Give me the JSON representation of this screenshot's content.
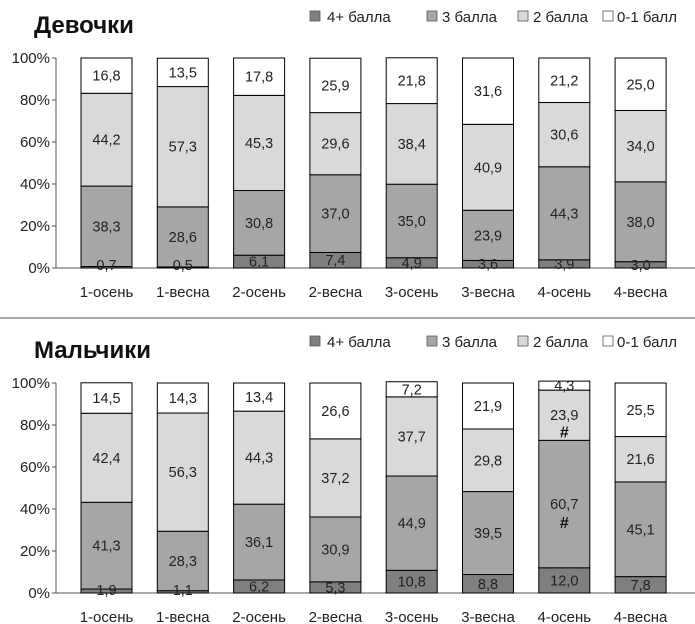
{
  "series_order": [
    "4+ балла",
    "3 балла",
    "2 балла",
    "0-1 балл"
  ],
  "colors": {
    "4+": "#7f7f7f",
    "3": "#a6a6a6",
    "2": "#d9d9d9",
    "0-1": "#ffffff"
  },
  "chart_data": [
    {
      "type": "stacked-bar",
      "title": "Девочки",
      "categories": [
        "1-осень",
        "1-весна",
        "2-осень",
        "2-весна",
        "3-осень",
        "3-весна",
        "4-осень",
        "4-весна"
      ],
      "yticks": [
        "0%",
        "20%",
        "40%",
        "60%",
        "80%",
        "100%"
      ],
      "ylim": [
        0,
        100
      ],
      "series": [
        {
          "name": "4+ балла",
          "key": "4+",
          "values": [
            0.7,
            0.5,
            6.1,
            7.4,
            4.9,
            3.6,
            3.9,
            3.0
          ],
          "labels": [
            "0,7",
            "0,5",
            "6,1",
            "7,4",
            "4,9",
            "3,6",
            "3,9",
            "3,0"
          ]
        },
        {
          "name": "3 балла",
          "key": "3",
          "values": [
            38.3,
            28.6,
            30.8,
            37.0,
            35.0,
            23.9,
            44.3,
            38.0
          ],
          "labels": [
            "38,3",
            "28,6",
            "30,8",
            "37,0",
            "35,0",
            "23,9",
            "44,3",
            "38,0"
          ]
        },
        {
          "name": "2 балла",
          "key": "2",
          "values": [
            44.2,
            57.3,
            45.3,
            29.6,
            38.4,
            40.9,
            30.6,
            34.0
          ],
          "labels": [
            "44,2",
            "57,3",
            "45,3",
            "29,6",
            "38,4",
            "40,9",
            "30,6",
            "34,0"
          ]
        },
        {
          "name": "0-1 балл",
          "key": "0-1",
          "values": [
            16.8,
            13.5,
            17.8,
            25.9,
            21.8,
            31.6,
            21.2,
            25.0
          ],
          "labels": [
            "16,8",
            "13,5",
            "17,8",
            "25,9",
            "21,8",
            "31,6",
            "21,2",
            "25,0"
          ]
        }
      ],
      "annotations": []
    },
    {
      "type": "stacked-bar",
      "title": "Мальчики",
      "categories": [
        "1-осень",
        "1-весна",
        "2-осень",
        "2-весна",
        "3-осень",
        "3-весна",
        "4-осень",
        "4-весна"
      ],
      "yticks": [
        "0%",
        "20%",
        "40%",
        "60%",
        "80%",
        "100%"
      ],
      "ylim": [
        0,
        100
      ],
      "series": [
        {
          "name": "4+ балла",
          "key": "4+",
          "values": [
            1.9,
            1.1,
            6.2,
            5.3,
            10.8,
            8.8,
            12.0,
            7.8
          ],
          "labels": [
            "1,9",
            "1,1",
            "6,2",
            "5,3",
            "10,8",
            "8,8",
            "12,0",
            "7,8"
          ]
        },
        {
          "name": "3 балла",
          "key": "3",
          "values": [
            41.3,
            28.3,
            36.1,
            30.9,
            44.9,
            39.5,
            60.7,
            45.1
          ],
          "labels": [
            "41,3",
            "28,3",
            "36,1",
            "30,9",
            "44,9",
            "39,5",
            "60,7",
            "45,1"
          ]
        },
        {
          "name": "2 балла",
          "key": "2",
          "values": [
            42.4,
            56.3,
            44.3,
            37.2,
            37.7,
            29.8,
            23.9,
            21.6
          ],
          "labels": [
            "42,4",
            "56,3",
            "44,3",
            "37,2",
            "37,7",
            "29,8",
            "23,9",
            "21,6"
          ]
        },
        {
          "name": "0-1 балл",
          "key": "0-1",
          "values": [
            14.5,
            14.3,
            13.4,
            26.6,
            7.2,
            21.9,
            4.3,
            25.5
          ],
          "labels": [
            "14,5",
            "14,3",
            "13,4",
            "26,6",
            "7,2",
            "21,9",
            "4,3",
            "25,5"
          ]
        }
      ],
      "annotations": [
        {
          "category": "4-осень",
          "series": "3 балла",
          "text": "#"
        },
        {
          "category": "4-осень",
          "series": "2 балла",
          "text": "#"
        }
      ]
    }
  ]
}
